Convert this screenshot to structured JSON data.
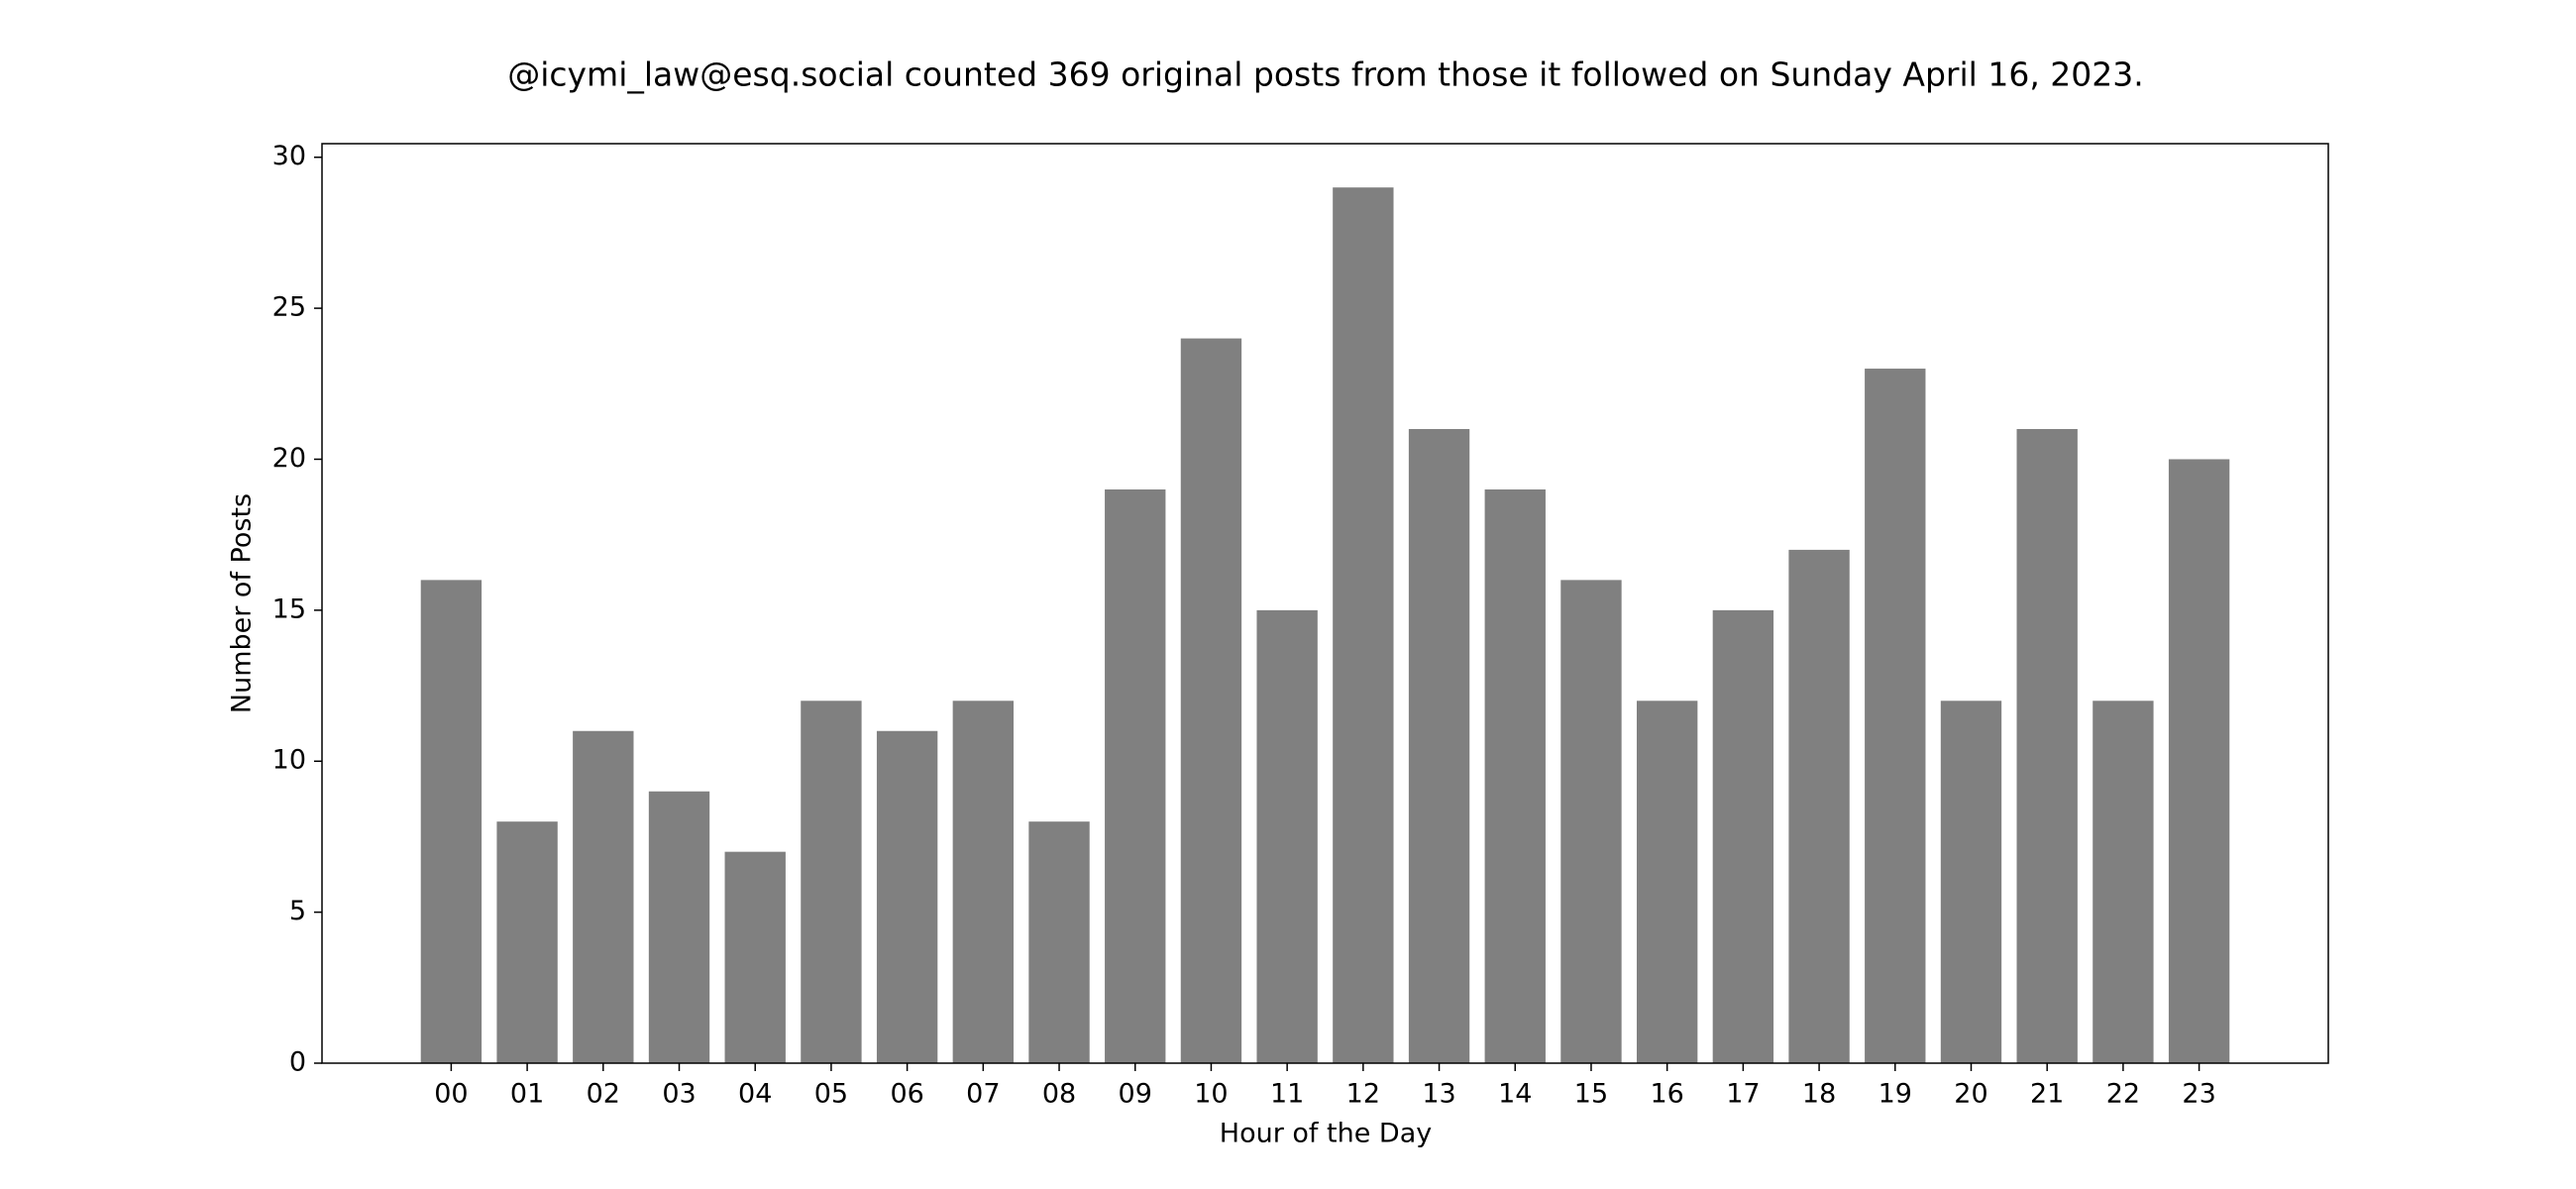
{
  "chart_data": {
    "type": "bar",
    "title": "@icymi_law@esq.social counted 369 original posts from those it followed on Sunday April 16, 2023.",
    "x_label": "Hour of the Day",
    "y_label": "Number of Posts",
    "categories": [
      "00",
      "01",
      "02",
      "03",
      "04",
      "05",
      "06",
      "07",
      "08",
      "09",
      "10",
      "11",
      "12",
      "13",
      "14",
      "15",
      "16",
      "17",
      "18",
      "19",
      "20",
      "21",
      "22",
      "23"
    ],
    "values": [
      16,
      8,
      11,
      9,
      7,
      12,
      11,
      12,
      8,
      19,
      24,
      15,
      29,
      21,
      19,
      16,
      12,
      15,
      17,
      23,
      12,
      21,
      12,
      20
    ],
    "color": "#808080",
    "ylim": [
      0,
      30.45
    ],
    "yticks": [
      0,
      5,
      10,
      15,
      20,
      25,
      30
    ],
    "grid": false
  }
}
